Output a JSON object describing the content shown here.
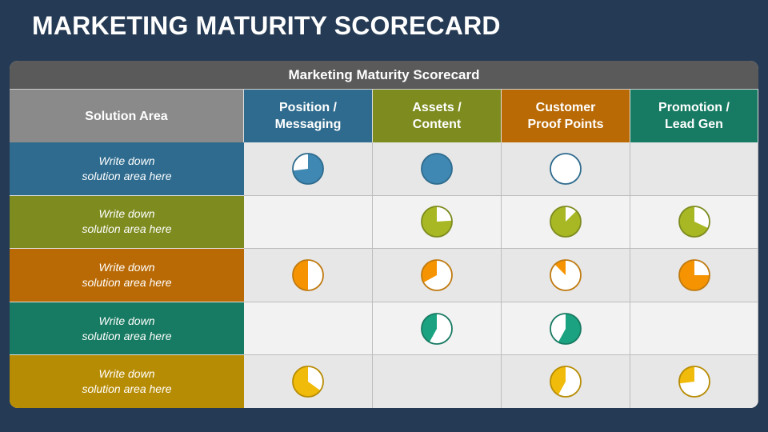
{
  "title": "MARKETING MATURITY SCORECARD",
  "table": {
    "caption": "Marketing Maturity Scorecard",
    "header_color": "#5a5a5a",
    "first_header": {
      "label": "Solution Area",
      "color": "#8a8a8a"
    },
    "columns": [
      {
        "line1": "Position /",
        "line2": "Messaging",
        "color": "#2e6b8e"
      },
      {
        "line1": "Assets /",
        "line2": "Content",
        "color": "#7d8b1f"
      },
      {
        "line1": "Customer",
        "line2": "Proof Points",
        "color": "#b96a05"
      },
      {
        "line1": "Promotion /",
        "line2": "Lead Gen",
        "color": "#177a62"
      }
    ],
    "rows": [
      {
        "line1": "Write down",
        "line2": "solution area here",
        "color": "#2e6b8e",
        "pie": "#3f88b3",
        "edge": "#2e6b8e",
        "scores": [
          {
            "value": 0.73,
            "dir": "cw"
          },
          {
            "value": 1,
            "dir": "cw"
          },
          {
            "value": 0,
            "dir": "cw"
          },
          null
        ]
      },
      {
        "line1": "Write down",
        "line2": "solution area here",
        "color": "#7d8b1f",
        "pie": "#a8b824",
        "edge": "#7d8b1f",
        "scores": [
          null,
          {
            "value": 0.76,
            "dir": "ccw"
          },
          {
            "value": 0.875,
            "dir": "ccw"
          },
          {
            "value": 0.68,
            "dir": "ccw"
          }
        ]
      },
      {
        "line1": "Write down",
        "line2": "solution area here",
        "color": "#b96a05",
        "pie": "#f59400",
        "edge": "#c07a10",
        "scores": [
          {
            "value": 0.5,
            "dir": "ccw"
          },
          {
            "value": 0.33,
            "dir": "ccw"
          },
          {
            "value": 0.125,
            "dir": "ccw"
          },
          {
            "value": 0.75,
            "dir": "ccw"
          }
        ]
      },
      {
        "line1": "Write down",
        "line2": "solution area here",
        "color": "#177a62",
        "pie": "#1ba381",
        "edge": "#177a62",
        "scores": [
          null,
          {
            "value": 0.42,
            "dir": "ccw"
          },
          {
            "value": 0.58,
            "dir": "cw"
          },
          null
        ]
      },
      {
        "line1": "Write down",
        "line2": "solution area here",
        "color": "#b78c05",
        "pie": "#f0bb0a",
        "edge": "#b78c05",
        "scores": [
          {
            "value": 0.65,
            "dir": "ccw"
          },
          null,
          {
            "value": 0.42,
            "dir": "ccw"
          },
          {
            "value": 0.27,
            "dir": "ccw"
          }
        ]
      }
    ]
  }
}
